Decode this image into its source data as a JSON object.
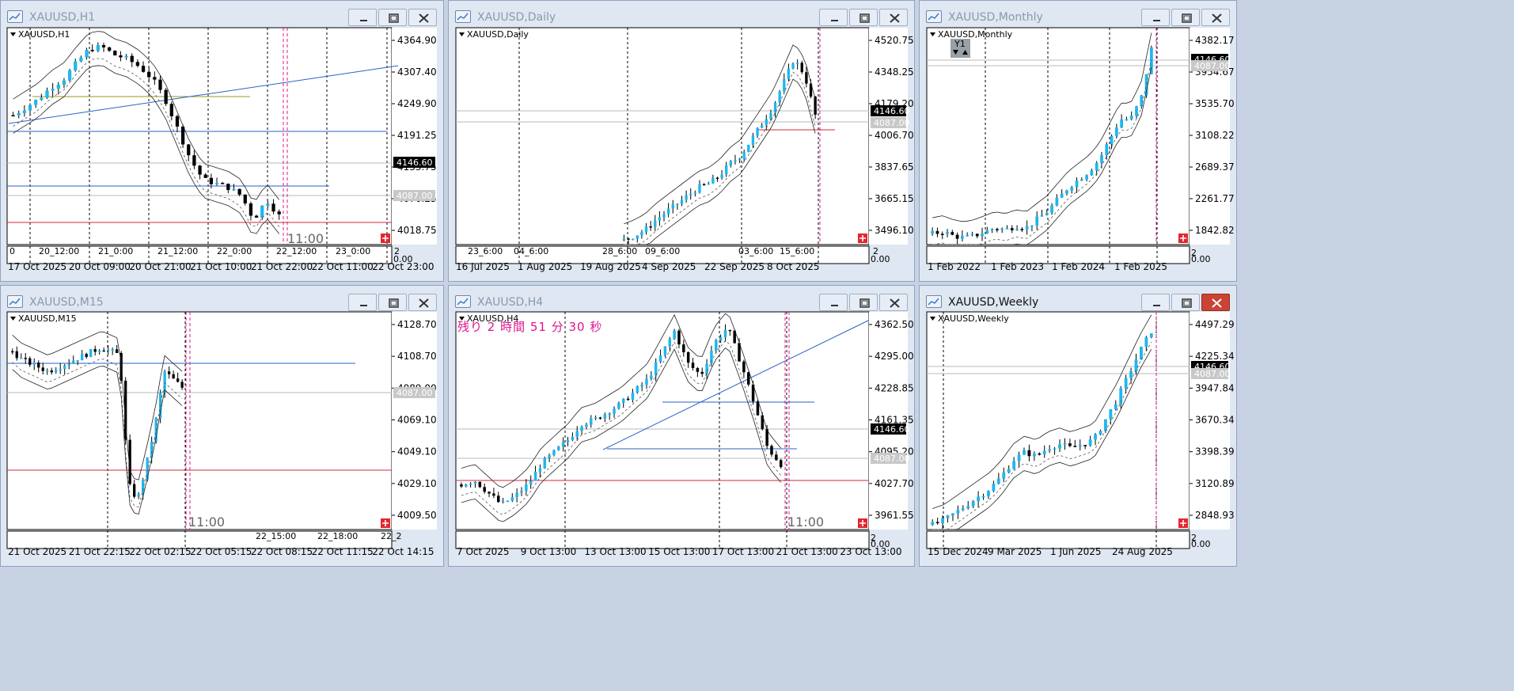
{
  "windows": [
    {
      "id": "h1",
      "title": "XAUUSD,H1",
      "symbol_label": "XAUUSD,H1",
      "active": false,
      "price_labels": [
        "4364.90",
        "4307.40",
        "4249.90",
        "4191.25",
        "4133.75",
        "4076.25",
        "4018.75"
      ],
      "current_price": "4146.60",
      "ref_price": "4087.00",
      "period_labels": [
        "0",
        "20_12:00",
        "21_0:00",
        "21_12:00",
        "22_0:00",
        "22_12:00",
        "23_0:00",
        "2"
      ],
      "date_labels": [
        "17 Oct 2025",
        "20 Oct 09:00",
        "20 Oct 21:00",
        "21 Oct 10:00",
        "21 Oct 22:00",
        "22 Oct 11:00",
        "22 Oct 23:00"
      ],
      "time_overlay": "11:00",
      "corner_small": "0.00",
      "countdown": ""
    },
    {
      "id": "daily",
      "title": "XAUUSD,Daily",
      "symbol_label": "XAUUSD,Daily",
      "active": false,
      "price_labels": [
        "4520.75",
        "4348.25",
        "4179.20",
        "4006.70",
        "3837.65",
        "3665.15",
        "3496.10"
      ],
      "current_price": "4146.60",
      "ref_price": "4087.00",
      "period_labels": [
        "23_6:00",
        "04_6:00",
        "28_6:00",
        "09_6:00",
        "03_6:00",
        "15_6:00",
        "2"
      ],
      "date_labels": [
        "16 Jul 2025",
        "1 Aug 2025",
        "19 Aug 2025",
        "4 Sep 2025",
        "22 Sep 2025",
        "8 Oct 2025"
      ],
      "time_overlay": "",
      "corner_small": "0.00",
      "countdown": ""
    },
    {
      "id": "monthly",
      "title": "XAUUSD,Monthly",
      "symbol_label": "XAUUSD,Monthly",
      "active": false,
      "badge": "Y1",
      "price_labels": [
        "4382.17",
        "3954.67",
        "3535.70",
        "3108.22",
        "2689.37",
        "2261.77",
        "1842.82"
      ],
      "current_price": "4146.60",
      "ref_price": "4087.00",
      "period_labels": [
        "2"
      ],
      "date_labels": [
        "1 Feb 2022",
        "1 Feb 2023",
        "1 Feb 2024",
        "1 Feb 2025"
      ],
      "time_overlay": "",
      "corner_small": "0.00",
      "countdown": ""
    },
    {
      "id": "m15",
      "title": "XAUUSD,M15",
      "symbol_label": "XAUUSD,M15",
      "active": false,
      "price_labels": [
        "4128.70",
        "4108.70",
        "4089.00",
        "4069.10",
        "4049.10",
        "4029.10",
        "4009.50"
      ],
      "current_price": "",
      "ref_price": "4087.00",
      "period_labels": [
        "22_15:00",
        "22_18:00",
        "22_2"
      ],
      "date_labels": [
        "21 Oct 2025",
        "21 Oct 22:15",
        "22 Oct 02:15",
        "22 Oct 05:15",
        "22 Oct 08:15",
        "22 Oct 11:15",
        "22 Oct 14:15"
      ],
      "time_overlay": "11:00",
      "corner_small": "",
      "countdown": ""
    },
    {
      "id": "h4",
      "title": "XAUUSD,H4",
      "symbol_label": "XAUUSD,H4",
      "active": false,
      "price_labels": [
        "4362.50",
        "4295.00",
        "4228.85",
        "4161.35",
        "4095.20",
        "4027.70",
        "3961.55"
      ],
      "current_price": "4146.60",
      "ref_price": "4087.00",
      "period_labels": [
        "2"
      ],
      "date_labels": [
        "7 Oct 2025",
        "9 Oct 13:00",
        "13 Oct 13:00",
        "15 Oct 13:00",
        "17 Oct 13:00",
        "21 Oct 13:00",
        "23 Oct 13:00"
      ],
      "time_overlay": "11:00",
      "corner_small": "0.00",
      "countdown": "残り 2 時間 51 分 30 秒"
    },
    {
      "id": "weekly",
      "title": "XAUUSD,Weekly",
      "symbol_label": "XAUUSD,Weekly",
      "active": true,
      "price_labels": [
        "4497.29",
        "4225.34",
        "3947.84",
        "3670.34",
        "3398.39",
        "3120.89",
        "2848.93"
      ],
      "current_price": "4146.60",
      "ref_price": "4087.00",
      "period_labels": [
        "2"
      ],
      "date_labels": [
        "15 Dec 2024",
        "9 Mar 2025",
        "1 Jun 2025",
        "24 Aug 2025"
      ],
      "time_overlay": "",
      "corner_small": "0.00",
      "countdown": ""
    }
  ],
  "colors": {
    "bull": "#1eb7f0",
    "bear": "#000000",
    "blue_line": "#2a62c9",
    "red_line": "#d2283c",
    "period_sep": "#e0148c",
    "olive_line": "#9a9a1a",
    "grid_gray": "#b8b8b8",
    "badge_bg": "#000000"
  },
  "icons": {
    "chart": "chart-window-icon",
    "minimize": "minimize-icon",
    "maximize": "maximize-icon",
    "close": "close-icon",
    "dropdown": "dropdown-triangle-icon",
    "scroll": "scroll-to-end-icon"
  }
}
